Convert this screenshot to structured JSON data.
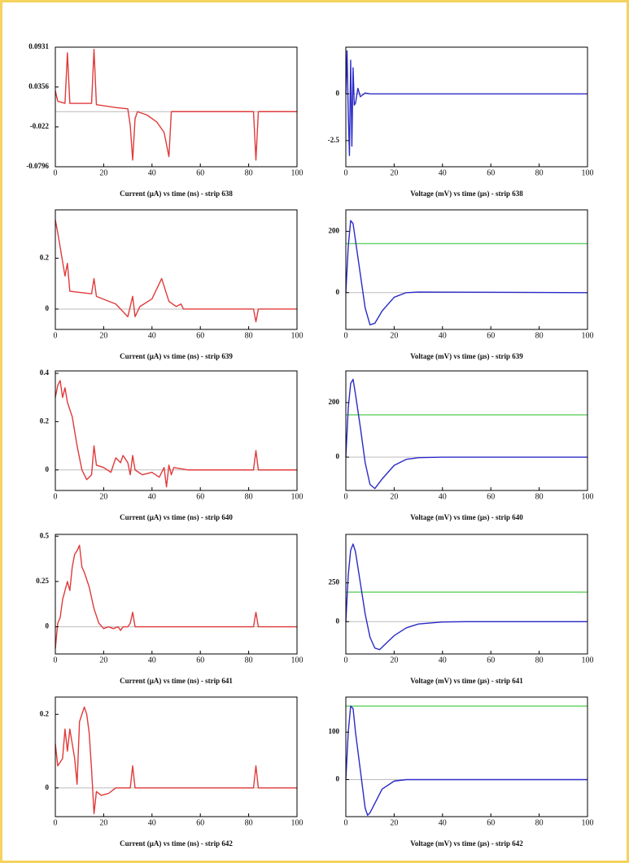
{
  "chart_data": [
    {
      "type": "line",
      "title": "Current (µA) vs time (ns) - strip 638",
      "x": [
        0,
        1,
        4,
        5,
        6,
        15,
        16,
        17,
        25,
        30,
        31,
        32,
        33,
        34,
        38,
        42,
        45,
        47,
        48,
        50,
        82,
        83,
        84,
        100
      ],
      "series": [
        {
          "color": "#e03a3a",
          "values": [
            0.03,
            0.015,
            0.012,
            0.085,
            0.012,
            0.012,
            0.09,
            0.01,
            0.006,
            0.004,
            -0.02,
            -0.07,
            -0.01,
            0,
            -0.005,
            -0.015,
            -0.03,
            -0.065,
            0,
            0,
            0,
            -0.07,
            0,
            0
          ]
        }
      ],
      "xlim": [
        0,
        100
      ],
      "xticks": [
        0,
        20,
        40,
        60,
        80,
        100
      ],
      "ylim": [
        -0.0796,
        0.0931
      ],
      "yticks": [
        -0.0796,
        -0.022,
        0.0356,
        0.0931
      ],
      "zero_line": true
    },
    {
      "type": "line",
      "title": "Voltage (mV) vs time (µs) - strip 638",
      "x": [
        0,
        0.5,
        1,
        1.5,
        2,
        2.5,
        3,
        3.5,
        4,
        5,
        6,
        8,
        10,
        100
      ],
      "series": [
        {
          "color": "#2a2ac8",
          "values": [
            0,
            2.3,
            -1,
            -3.3,
            1.8,
            -2.8,
            1.4,
            -0.6,
            -0.5,
            0.3,
            -0.15,
            0.05,
            0,
            0
          ]
        }
      ],
      "xlim": [
        0,
        100
      ],
      "xticks": [
        0,
        20,
        40,
        60,
        80,
        100
      ],
      "ylim": [
        -3.9,
        2.5
      ],
      "yticks": [
        -2.5,
        0
      ],
      "zero_line": true
    },
    {
      "type": "line",
      "title": "Current (µA) vs time (ns) - strip 639",
      "x": [
        0,
        1,
        4,
        5,
        6,
        15,
        16,
        17,
        25,
        30,
        32,
        33,
        35,
        40,
        44,
        47,
        50,
        52,
        53,
        82,
        83,
        84,
        100
      ],
      "series": [
        {
          "color": "#e03a3a",
          "values": [
            0.35,
            0.3,
            0.13,
            0.18,
            0.07,
            0.06,
            0.12,
            0.05,
            0.02,
            -0.03,
            0.05,
            -0.03,
            0.01,
            0.04,
            0.12,
            0.03,
            0.01,
            0.02,
            0,
            0,
            -0.05,
            0,
            0
          ]
        }
      ],
      "xlim": [
        0,
        100
      ],
      "xticks": [
        0,
        20,
        40,
        60,
        80,
        100
      ],
      "ylim": [
        -0.08,
        0.39
      ],
      "yticks": [
        0,
        0.2
      ],
      "zero_line": true
    },
    {
      "type": "line",
      "title": "Voltage (mV) vs time (µs) - strip 639",
      "x": [
        0,
        1,
        2,
        3,
        4,
        6,
        8,
        10,
        12,
        15,
        20,
        25,
        30,
        100
      ],
      "series": [
        {
          "color": "#2a2ac8",
          "values": [
            0,
            150,
            235,
            225,
            170,
            60,
            -50,
            -105,
            -100,
            -60,
            -15,
            0,
            2,
            0
          ]
        }
      ],
      "xlim": [
        0,
        100
      ],
      "xticks": [
        0,
        20,
        40,
        60,
        80,
        100
      ],
      "ylim": [
        -120,
        270
      ],
      "yticks": [
        0,
        200
      ],
      "zero_line": true,
      "threshold": 160,
      "threshold_color": "#6ad46a"
    },
    {
      "type": "line",
      "title": "Current (µA) vs time (ns) - strip 640",
      "x": [
        0,
        1,
        2,
        3,
        4,
        5,
        7,
        9,
        11,
        13,
        15,
        16,
        17,
        20,
        23,
        25,
        27,
        28,
        30,
        31,
        32,
        33,
        36,
        40,
        43,
        45,
        46,
        47,
        48,
        49,
        55,
        82,
        83,
        84,
        100
      ],
      "series": [
        {
          "color": "#e03a3a",
          "values": [
            0.3,
            0.35,
            0.37,
            0.3,
            0.34,
            0.28,
            0.22,
            0.1,
            0,
            -0.04,
            -0.02,
            0.1,
            0.02,
            0.01,
            -0.01,
            0.05,
            0.03,
            0.06,
            0.03,
            -0.02,
            0.06,
            0,
            -0.02,
            -0.01,
            -0.03,
            0.01,
            -0.07,
            0.02,
            -0.02,
            0.01,
            0,
            0,
            0.08,
            0,
            0
          ]
        }
      ],
      "xlim": [
        0,
        100
      ],
      "xticks": [
        0,
        20,
        40,
        60,
        80,
        100
      ],
      "ylim": [
        -0.085,
        0.41
      ],
      "yticks": [
        0,
        0.2,
        0.4
      ],
      "zero_line": true
    },
    {
      "type": "line",
      "title": "Voltage (mV) vs time (µs) - strip 640",
      "x": [
        0,
        1,
        2,
        3,
        4,
        6,
        8,
        10,
        12,
        15,
        20,
        25,
        30,
        40,
        100
      ],
      "series": [
        {
          "color": "#2a2ac8",
          "values": [
            0,
            180,
            270,
            285,
            230,
            110,
            -20,
            -100,
            -115,
            -80,
            -30,
            -8,
            -2,
            0,
            0
          ]
        }
      ],
      "xlim": [
        0,
        100
      ],
      "xticks": [
        0,
        20,
        40,
        60,
        80,
        100
      ],
      "ylim": [
        -122,
        316
      ],
      "yticks": [
        0,
        200
      ],
      "zero_line": true,
      "threshold": 155,
      "threshold_color": "#6ad46a"
    },
    {
      "type": "line",
      "title": "Current (µA) vs time (ns) - strip 641",
      "x": [
        0,
        1,
        2,
        3,
        4,
        5,
        6,
        7,
        8,
        9,
        10,
        11,
        12,
        14,
        16,
        18,
        20,
        22,
        24,
        26,
        27,
        28,
        30,
        31,
        32,
        33,
        40,
        82,
        83,
        84,
        100
      ],
      "series": [
        {
          "color": "#e03a3a",
          "values": [
            -0.12,
            0.02,
            0.05,
            0.15,
            0.2,
            0.25,
            0.2,
            0.33,
            0.4,
            0.42,
            0.45,
            0.33,
            0.3,
            0.22,
            0.1,
            0.02,
            -0.01,
            0,
            -0.01,
            0,
            -0.02,
            0,
            0,
            0.02,
            0.08,
            0,
            0,
            0,
            0.08,
            0,
            0
          ]
        }
      ],
      "xlim": [
        0,
        100
      ],
      "xticks": [
        0,
        20,
        40,
        60,
        80,
        100
      ],
      "ylim": [
        -0.15,
        0.51
      ],
      "yticks": [
        0,
        0.25,
        0.5
      ],
      "zero_line": true
    },
    {
      "type": "line",
      "title": "Voltage (mV) vs time (µs) - strip 641",
      "x": [
        0,
        1,
        2,
        3,
        4,
        6,
        8,
        10,
        12,
        14,
        16,
        20,
        25,
        30,
        40,
        50,
        100
      ],
      "series": [
        {
          "color": "#2a2ac8",
          "values": [
            0,
            300,
            460,
            500,
            450,
            250,
            50,
            -100,
            -170,
            -180,
            -150,
            -90,
            -40,
            -15,
            -2,
            0,
            0
          ]
        }
      ],
      "xlim": [
        0,
        100
      ],
      "xticks": [
        0,
        20,
        40,
        60,
        80,
        100
      ],
      "ylim": [
        -208,
        562
      ],
      "yticks": [
        0,
        250
      ],
      "zero_line": true,
      "threshold": 190,
      "threshold_color": "#6ad46a"
    },
    {
      "type": "line",
      "title": "Current (µA) vs time (ns) - strip 642",
      "x": [
        0,
        1,
        3,
        4,
        5,
        6,
        7,
        8,
        9,
        10,
        11,
        12,
        13,
        14,
        15,
        16,
        17,
        19,
        22,
        24,
        25,
        31,
        32,
        33,
        82,
        83,
        84,
        100
      ],
      "series": [
        {
          "color": "#e03a3a",
          "values": [
            0.12,
            0.06,
            0.08,
            0.16,
            0.1,
            0.16,
            0.12,
            0.08,
            0.01,
            0.18,
            0.2,
            0.22,
            0.2,
            0.15,
            0.05,
            -0.07,
            -0.01,
            -0.02,
            -0.015,
            -0.005,
            0,
            0,
            0.06,
            0,
            0,
            0.06,
            0,
            0
          ]
        }
      ],
      "xlim": [
        0,
        100
      ],
      "xticks": [
        0,
        20,
        40,
        60,
        80,
        100
      ],
      "ylim": [
        -0.078,
        0.247
      ],
      "yticks": [
        0,
        0.2
      ],
      "zero_line": true
    },
    {
      "type": "line",
      "title": "Voltage (mV) vs time (µs) - strip 642",
      "x": [
        0,
        1,
        2,
        3,
        4,
        6,
        8,
        9,
        10,
        12,
        15,
        20,
        25,
        100
      ],
      "series": [
        {
          "color": "#2a2ac8",
          "values": [
            0,
            100,
            155,
            150,
            100,
            20,
            -60,
            -75,
            -70,
            -50,
            -20,
            -3,
            0,
            0
          ]
        }
      ],
      "xlim": [
        0,
        100
      ],
      "xticks": [
        0,
        20,
        40,
        60,
        80,
        100
      ],
      "ylim": [
        -78,
        174
      ],
      "yticks": [
        0,
        100
      ],
      "zero_line": true,
      "threshold": 155,
      "threshold_color": "#6ad46a"
    }
  ]
}
